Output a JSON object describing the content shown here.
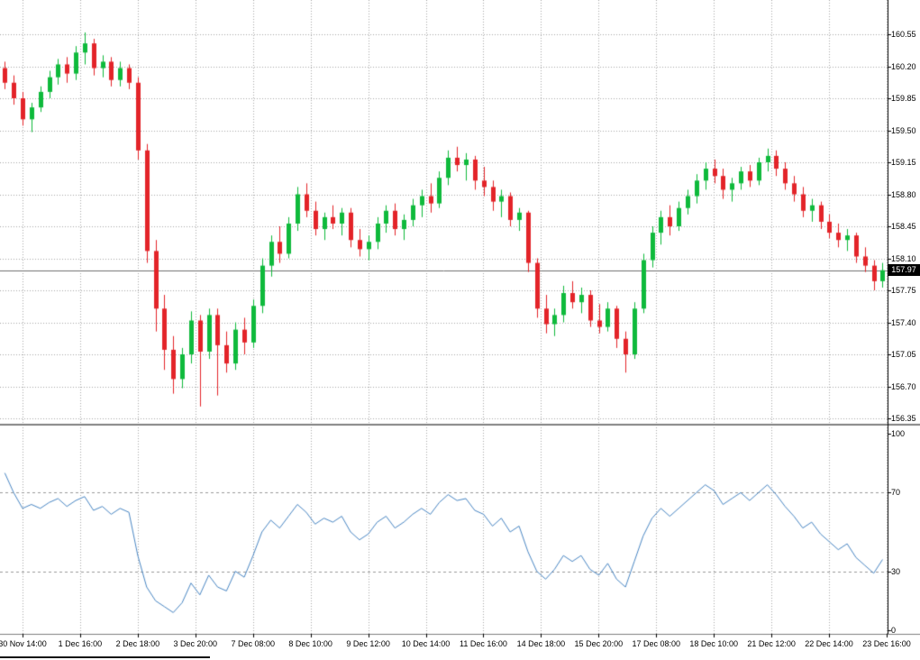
{
  "colors": {
    "panel_bg": "#FFFFFF",
    "bull": "#0FBA3C",
    "bear": "#E32429",
    "rsi_line": "#4A87C4",
    "grid": "#A8A8A8",
    "level_line": "#9A9A9A",
    "price_line": "#707070",
    "separator": "#808080",
    "axis_line": "#000000",
    "axis_text": "#000000",
    "badge_bg": "#000000",
    "badge_text": "#FFFFFF"
  },
  "chart_data": [
    {
      "type": "candlestick",
      "title": "price-panel",
      "current_price": "157.97",
      "ylim": [
        156.29,
        160.93
      ],
      "grid": true,
      "legend": "none",
      "y_tick_labels": [
        "160.55",
        "160.20",
        "159.85",
        "159.50",
        "159.15",
        "158.80",
        "158.45",
        "158.10",
        "157.75",
        "157.40",
        "157.05",
        "156.70",
        "156.35"
      ],
      "x_tick_labels": [
        "30 Nov 14:00",
        "1 Dec 16:00",
        "2 Dec 18:00",
        "3 Dec 20:00",
        "7 Dec 08:00",
        "8 Dec 10:00",
        "9 Dec 12:00",
        "10 Dec 14:00",
        "11 Dec 16:00",
        "14 Dec 18:00",
        "15 Dec 20:00",
        "17 Dec 08:00",
        "18 Dec 10:00",
        "21 Dec 12:00",
        "22 Dec 14:00",
        "23 Dec 16:00"
      ],
      "candles_ohlc": [
        [
          160.18,
          160.25,
          159.95,
          160.02
        ],
        [
          160.02,
          160.1,
          159.78,
          159.85
        ],
        [
          159.85,
          159.92,
          159.55,
          159.62
        ],
        [
          159.62,
          159.8,
          159.48,
          159.75
        ],
        [
          159.75,
          159.98,
          159.7,
          159.92
        ],
        [
          159.92,
          160.15,
          159.85,
          160.08
        ],
        [
          160.08,
          160.28,
          160.0,
          160.22
        ],
        [
          160.22,
          160.3,
          160.02,
          160.12
        ],
        [
          160.12,
          160.42,
          160.05,
          160.35
        ],
        [
          160.35,
          160.57,
          160.22,
          160.45
        ],
        [
          160.45,
          160.5,
          160.1,
          160.18
        ],
        [
          160.18,
          160.32,
          160.08,
          160.25
        ],
        [
          160.25,
          160.3,
          159.98,
          160.05
        ],
        [
          160.05,
          160.25,
          159.98,
          160.18
        ],
        [
          160.18,
          160.22,
          159.95,
          160.02
        ],
        [
          160.02,
          160.08,
          159.18,
          159.28
        ],
        [
          159.28,
          159.35,
          158.05,
          158.18
        ],
        [
          158.18,
          158.3,
          157.3,
          157.55
        ],
        [
          157.55,
          157.7,
          156.88,
          157.1
        ],
        [
          157.1,
          157.25,
          156.62,
          156.78
        ],
        [
          156.78,
          157.12,
          156.68,
          157.05
        ],
        [
          157.05,
          157.52,
          156.95,
          157.42
        ],
        [
          157.42,
          157.48,
          156.48,
          157.08
        ],
        [
          157.08,
          157.55,
          157.0,
          157.48
        ],
        [
          157.48,
          157.55,
          156.6,
          157.15
        ],
        [
          157.15,
          157.3,
          156.85,
          156.95
        ],
        [
          156.95,
          157.4,
          156.88,
          157.32
        ],
        [
          157.32,
          157.45,
          157.05,
          157.18
        ],
        [
          157.18,
          157.65,
          157.12,
          157.58
        ],
        [
          157.58,
          158.1,
          157.5,
          158.02
        ],
        [
          158.02,
          158.35,
          157.9,
          158.28
        ],
        [
          158.28,
          158.45,
          158.05,
          158.15
        ],
        [
          158.15,
          158.55,
          158.1,
          158.48
        ],
        [
          158.48,
          158.88,
          158.4,
          158.8
        ],
        [
          158.8,
          158.92,
          158.55,
          158.62
        ],
        [
          158.62,
          158.72,
          158.35,
          158.42
        ],
        [
          158.42,
          158.6,
          158.3,
          158.55
        ],
        [
          158.55,
          158.68,
          158.42,
          158.48
        ],
        [
          158.48,
          158.65,
          158.35,
          158.6
        ],
        [
          158.6,
          158.65,
          158.22,
          158.3
        ],
        [
          158.3,
          158.42,
          158.12,
          158.2
        ],
        [
          158.2,
          158.35,
          158.08,
          158.28
        ],
        [
          158.28,
          158.55,
          158.2,
          158.48
        ],
        [
          158.48,
          158.68,
          158.38,
          158.62
        ],
        [
          158.62,
          158.7,
          158.35,
          158.42
        ],
        [
          158.42,
          158.58,
          158.3,
          158.52
        ],
        [
          158.52,
          158.75,
          158.45,
          158.68
        ],
        [
          158.68,
          158.85,
          158.55,
          158.78
        ],
        [
          158.78,
          158.92,
          158.6,
          158.7
        ],
        [
          158.7,
          159.05,
          158.65,
          158.98
        ],
        [
          158.98,
          159.28,
          158.9,
          159.2
        ],
        [
          159.2,
          159.32,
          159.05,
          159.12
        ],
        [
          159.12,
          159.25,
          158.95,
          159.18
        ],
        [
          159.18,
          159.22,
          158.85,
          158.95
        ],
        [
          158.95,
          159.1,
          158.78,
          158.88
        ],
        [
          158.88,
          158.95,
          158.62,
          158.72
        ],
        [
          158.72,
          158.85,
          158.55,
          158.78
        ],
        [
          158.78,
          158.82,
          158.45,
          158.52
        ],
        [
          158.52,
          158.65,
          158.4,
          158.6
        ],
        [
          158.6,
          158.62,
          157.95,
          158.05
        ],
        [
          158.05,
          158.1,
          157.45,
          157.55
        ],
        [
          157.55,
          157.7,
          157.28,
          157.38
        ],
        [
          157.38,
          157.55,
          157.25,
          157.48
        ],
        [
          157.48,
          157.8,
          157.4,
          157.72
        ],
        [
          157.72,
          157.85,
          157.55,
          157.62
        ],
        [
          157.62,
          157.78,
          157.5,
          157.7
        ],
        [
          157.7,
          157.75,
          157.35,
          157.42
        ],
        [
          157.42,
          157.6,
          157.28,
          157.35
        ],
        [
          157.35,
          157.62,
          157.3,
          157.55
        ],
        [
          157.55,
          157.58,
          157.12,
          157.22
        ],
        [
          157.22,
          157.3,
          156.85,
          157.05
        ],
        [
          157.05,
          157.62,
          157.0,
          157.55
        ],
        [
          157.55,
          158.15,
          157.5,
          158.08
        ],
        [
          158.08,
          158.45,
          158.0,
          158.38
        ],
        [
          158.38,
          158.62,
          158.25,
          158.55
        ],
        [
          158.55,
          158.68,
          158.35,
          158.45
        ],
        [
          158.45,
          158.72,
          158.4,
          158.65
        ],
        [
          158.65,
          158.85,
          158.58,
          158.78
        ],
        [
          158.78,
          159.02,
          158.7,
          158.95
        ],
        [
          158.95,
          159.15,
          158.85,
          159.08
        ],
        [
          159.08,
          159.18,
          158.92,
          159.0
        ],
        [
          159.0,
          159.08,
          158.75,
          158.85
        ],
        [
          158.85,
          158.98,
          158.72,
          158.92
        ],
        [
          158.92,
          159.1,
          158.85,
          159.05
        ],
        [
          159.05,
          159.12,
          158.88,
          158.95
        ],
        [
          158.95,
          159.2,
          158.9,
          159.15
        ],
        [
          159.15,
          159.3,
          159.05,
          159.22
        ],
        [
          159.22,
          159.28,
          159.0,
          159.08
        ],
        [
          159.08,
          159.15,
          158.85,
          158.92
        ],
        [
          158.92,
          159.0,
          158.72,
          158.8
        ],
        [
          158.8,
          158.88,
          158.55,
          158.62
        ],
        [
          158.62,
          158.75,
          158.5,
          158.68
        ],
        [
          158.68,
          158.72,
          158.42,
          158.5
        ],
        [
          158.5,
          158.58,
          158.32,
          158.38
        ],
        [
          158.38,
          158.48,
          158.22,
          158.3
        ],
        [
          158.3,
          158.42,
          158.18,
          158.35
        ],
        [
          158.35,
          158.38,
          158.05,
          158.12
        ],
        [
          158.12,
          158.22,
          157.95,
          158.02
        ],
        [
          158.02,
          158.08,
          157.75,
          157.85
        ],
        [
          157.85,
          158.05,
          157.78,
          157.97
        ]
      ]
    },
    {
      "type": "line",
      "title": "oscillator-panel",
      "ylim": [
        0,
        100
      ],
      "levels": [
        70,
        30
      ],
      "grid": true,
      "legend": "none",
      "y_tick_labels": [
        "100",
        "70",
        "30",
        "0"
      ],
      "values": [
        80,
        70,
        62,
        64,
        62,
        65,
        67,
        63,
        66,
        68,
        61,
        63,
        59,
        62,
        60,
        38,
        22,
        15,
        12,
        9,
        14,
        24,
        18,
        28,
        22,
        20,
        30,
        27,
        38,
        50,
        56,
        52,
        58,
        64,
        60,
        54,
        57,
        55,
        58,
        50,
        46,
        49,
        55,
        58,
        52,
        55,
        59,
        62,
        59,
        65,
        69,
        66,
        67,
        61,
        59,
        53,
        57,
        50,
        53,
        40,
        30,
        26,
        31,
        38,
        35,
        38,
        31,
        28,
        34,
        26,
        22,
        35,
        48,
        57,
        62,
        58,
        62,
        66,
        70,
        74,
        71,
        64,
        67,
        70,
        66,
        70,
        74,
        69,
        63,
        58,
        52,
        55,
        49,
        45,
        41,
        44,
        37,
        33,
        29,
        36
      ]
    }
  ]
}
